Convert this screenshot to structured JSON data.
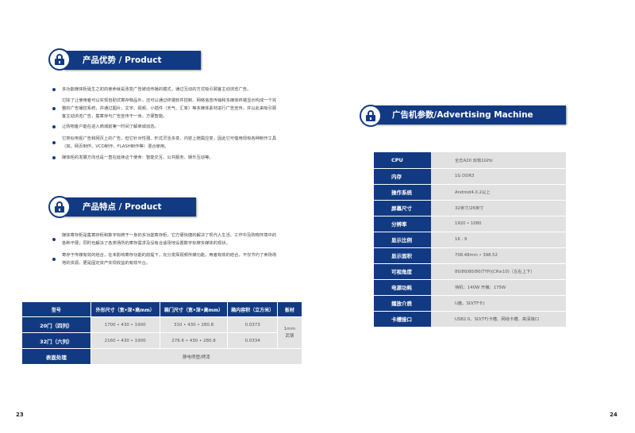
{
  "advantage": {
    "title": "产品优势 / Product Advantage",
    "bullets": [
      "多功能媒体柜诞生之初的使命就是改变广告被动传播的模式，通过互动的方式吸引顾客主动浏览广告。",
      "它除了让使用者可以实现自助式寄存物品外，还可以通过终端软件控制、网络信息传输和多媒体终端显示构成一个完整的广告播控系统，并通过图片、文字、视频、小插件（天气、汇率）等多媒体素材进行广告宣传，并以此来吸引顾客主动浏览广告，集寄存与广告宣传于一身，方便智能。",
      "让购物客户能在进入商城前第一时间了解商城动态。",
      "它类似电视广告和网页上的广告，但它针对性强、形式灵活多变、内容上随需应变，因此它可借用现有各种制作工具（如，网页制作、VCD制作、FLASH制作等）混合使用。",
      "媒体柜的发展方向也是一直在延续这个使命：智能交互、公共服务、娱乐互动等。"
    ]
  },
  "features": {
    "title": "产品特点 / Product Features",
    "bullets": [
      "媒体寄存柜是集寄存柜和数字标牌于一身的多功能寄存柜，它方便快捷的解决了现代人生活、工作中及购物环境中的各种不便；同时也解决了各类场所的寄存需求及没有合适场地设置数字标牌多媒体的现状。",
      "寄存于传媒有效的结合，在未影响寄存功能的前提下，充分发挥视频传媒功能，两者有效的结合，不仅节约了卖场场地的资源，更是固定资产实现收益的有效平台。"
    ]
  },
  "spec_table": {
    "headers": [
      "型号",
      "外形尺寸（宽•深•高mm）",
      "箱门尺寸（宽•深•高mm）",
      "箱内容积（立方米）",
      "板材"
    ],
    "rows": [
      [
        "20门（四列）",
        "1700 • 430 • 1900",
        "310 • 430 • 280.8",
        "0.0373"
      ],
      [
        "32门（六列）",
        "2160 • 430 • 1900",
        "276.6 • 430 • 280.8",
        "0.0334"
      ]
    ],
    "material": "1mm 武钢",
    "surface_label": "表面处理",
    "surface_value": "静电喷塑/烤漆"
  },
  "params": {
    "title": "广告机参数/Advertising Machine Parameters",
    "rows": [
      {
        "label": "CPU",
        "value": "全志A20  双核1GHz"
      },
      {
        "label": "内存",
        "value": "1G  DDR3"
      },
      {
        "label": "操作系统",
        "value": "Android4.0.2以上"
      },
      {
        "label": "屏幕尺寸",
        "value": "32英寸/26英寸"
      },
      {
        "label": "分辨率",
        "value": "1920 • 1080"
      },
      {
        "label": "显示比例",
        "value": "16 : 9"
      },
      {
        "label": "显示面积",
        "value": "708.48mm • 398.52"
      },
      {
        "label": "可视角度",
        "value": "80/80/80/80(TYP)(CR≥10)（左右上下）"
      },
      {
        "label": "电源功耗",
        "value": "待机：140W        开機：175W"
      },
      {
        "label": "播放介质",
        "value": "U盘、SD(TF卡)"
      },
      {
        "label": "卡槽接口",
        "value": "USB2.0、SD(TF)卡槽、网线卡槽、高清接口"
      }
    ]
  },
  "page_numbers": {
    "left": "23",
    "right": "24"
  },
  "colors": {
    "brand": "#123a82",
    "cell": "#e1e1e1"
  }
}
